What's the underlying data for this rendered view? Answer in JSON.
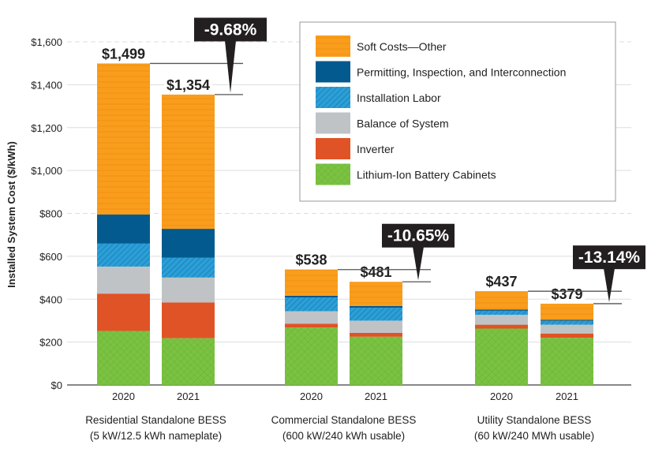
{
  "chart_data": {
    "type": "bar",
    "stacked": true,
    "ylabel": "Installed System Cost ($/kWh)",
    "ylim": [
      0,
      1600
    ],
    "yticks": [
      "$0",
      "$200",
      "$400",
      "$600",
      "$800",
      "$1,000",
      "$1,200",
      "$1,400",
      "$1,600"
    ],
    "grid": true,
    "legend_position": "top-right",
    "groups": [
      {
        "label_line1": "Residential Standalone BESS",
        "label_line2": "(5 kW/12.5 kWh nameplate)",
        "change": "-9.68%",
        "bars": [
          {
            "year": "2020",
            "total_label": "$1,499"
          },
          {
            "year": "2021",
            "total_label": "$1,354"
          }
        ]
      },
      {
        "label_line1": "Commercial Standalone BESS",
        "label_line2": "(600 kW/240 kWh usable)",
        "change": "-10.65%",
        "bars": [
          {
            "year": "2020",
            "total_label": "$538"
          },
          {
            "year": "2021",
            "total_label": "$481"
          }
        ]
      },
      {
        "label_line1": "Utility Standalone BESS",
        "label_line2": "(60 kW/240 MWh usable)",
        "change": "-13.14%",
        "bars": [
          {
            "year": "2020",
            "total_label": "$437"
          },
          {
            "year": "2021",
            "total_label": "$379"
          }
        ]
      }
    ],
    "series": [
      {
        "name": "Lithium-Ion Battery Cabinets",
        "color": "#7cc242",
        "values": [
          252,
          218,
          268,
          225,
          263,
          220
        ]
      },
      {
        "name": "Inverter",
        "color": "#e05326",
        "values": [
          174,
          167,
          18,
          18,
          18,
          20
        ]
      },
      {
        "name": "Balance of System",
        "color": "#bfc3c6",
        "values": [
          126,
          116,
          58,
          57,
          46,
          41
        ]
      },
      {
        "name": "Installation Labor",
        "color": "#2a9fd8",
        "values": [
          107,
          92,
          64,
          60,
          19,
          18
        ]
      },
      {
        "name": "Permitting, Inspection, and Interconnection",
        "color": "#035a8e",
        "values": [
          136,
          135,
          8,
          8,
          6,
          5
        ]
      },
      {
        "name": "Soft Costs—Other",
        "color": "#f99d1c",
        "values": [
          704,
          626,
          122,
          113,
          85,
          75
        ]
      }
    ]
  }
}
